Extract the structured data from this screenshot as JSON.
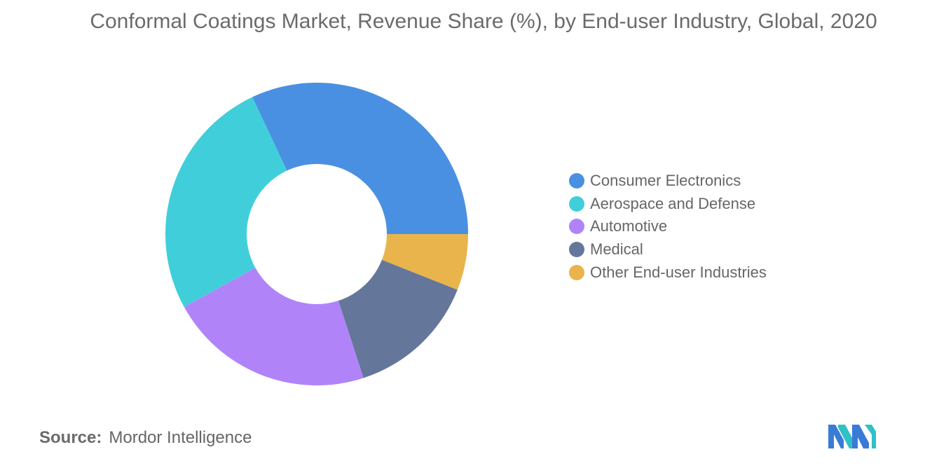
{
  "chart_data": {
    "type": "pie",
    "subtype": "donut",
    "title": "Conformal Coatings Market, Revenue Share (%), by End-user Industry, Global, 2020",
    "categories": [
      "Consumer Electronics",
      "Aerospace and Defense",
      "Automotive",
      "Medical",
      "Other End-user Industries"
    ],
    "values": [
      32,
      26,
      22,
      14,
      6
    ],
    "colors": [
      "#4a90e2",
      "#40cfda",
      "#b084f8",
      "#64779a",
      "#e9b44c"
    ],
    "legend_position": "right",
    "grid": false
  },
  "source": {
    "label": "Source:",
    "text": "Mordor Intelligence"
  }
}
